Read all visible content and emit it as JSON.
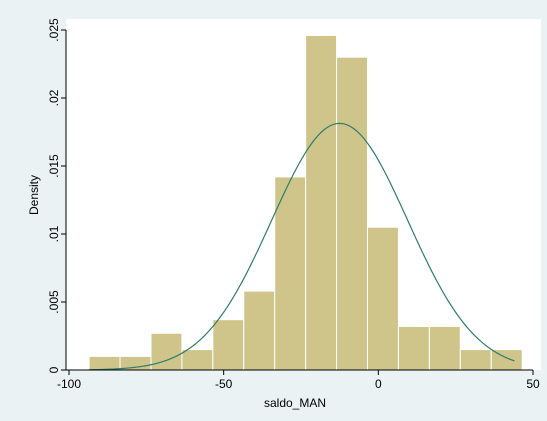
{
  "chart_data": {
    "type": "bar",
    "title": "",
    "xlabel": "saldo_MAN",
    "ylabel": "Density",
    "xlim": [
      -100,
      50
    ],
    "ylim": [
      0,
      0.025
    ],
    "x_ticks": [
      {
        "value": -100,
        "label": "-100"
      },
      {
        "value": -50,
        "label": "-50"
      },
      {
        "value": 0,
        "label": "0"
      },
      {
        "value": 50,
        "label": "50"
      }
    ],
    "y_ticks": [
      {
        "value": 0,
        "label": "0"
      },
      {
        "value": 0.005,
        "label": ".005"
      },
      {
        "value": 0.01,
        "label": ".01"
      },
      {
        "value": 0.015,
        "label": ".015"
      },
      {
        "value": 0.02,
        "label": ".02"
      },
      {
        "value": 0.025,
        "label": ".025"
      }
    ],
    "bins": [
      {
        "x0": -93.5,
        "x1": -83.5,
        "density": 0.001
      },
      {
        "x0": -83.5,
        "x1": -73.5,
        "density": 0.001
      },
      {
        "x0": -73.5,
        "x1": -63.5,
        "density": 0.0027
      },
      {
        "x0": -63.5,
        "x1": -53.5,
        "density": 0.0015
      },
      {
        "x0": -53.5,
        "x1": -43.5,
        "density": 0.0037
      },
      {
        "x0": -43.5,
        "x1": -33.5,
        "density": 0.0058
      },
      {
        "x0": -33.5,
        "x1": -23.5,
        "density": 0.0142
      },
      {
        "x0": -23.5,
        "x1": -13.5,
        "density": 0.0246
      },
      {
        "x0": -13.5,
        "x1": -3.5,
        "density": 0.023
      },
      {
        "x0": -3.5,
        "x1": 6.5,
        "density": 0.0105
      },
      {
        "x0": 6.5,
        "x1": 16.5,
        "density": 0.0032
      },
      {
        "x0": 16.5,
        "x1": 26.5,
        "density": 0.0032
      },
      {
        "x0": 26.5,
        "x1": 36.5,
        "density": 0.0015
      },
      {
        "x0": 36.5,
        "x1": 46.5,
        "density": 0.0015
      }
    ],
    "normal_curve": {
      "mean": -12.5,
      "sd": 22,
      "x_from": -93.5,
      "x_to": 44
    },
    "grid": false,
    "colors": {
      "bar_fill": "#cfc58a",
      "bar_edge": "#ffffff",
      "curve": "#2e7d6e",
      "plot_bg": "#ffffff",
      "outer_bg": "#eaf2f3",
      "axis": "#000000"
    }
  }
}
